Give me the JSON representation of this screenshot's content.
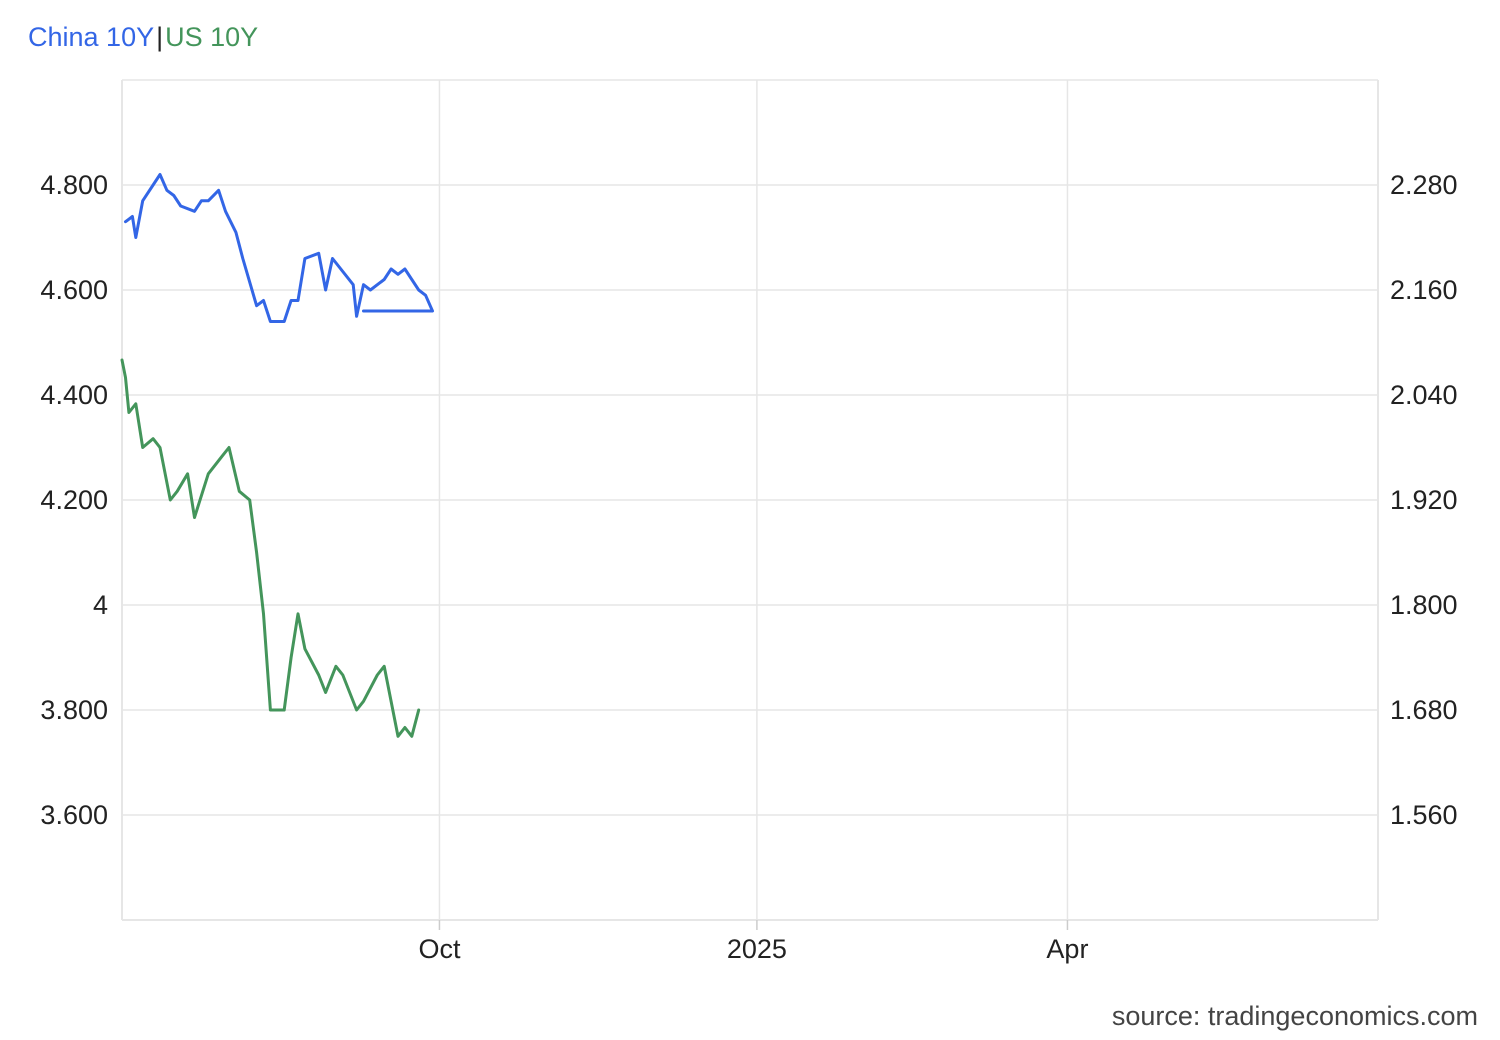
{
  "legend": {
    "series1": "China 10Y",
    "separator": "|",
    "series2": "US 10Y"
  },
  "source": "source: tradingeconomics.com",
  "colors": {
    "china": "#3366e6",
    "us": "#44955b",
    "grid": "#e6e6e6"
  },
  "chart_data": {
    "type": "line",
    "x_tick_labels": [
      "Oct",
      "2025",
      "Apr"
    ],
    "x_ticks": [
      "2024-10-01",
      "2025-01-01",
      "2025-04-01"
    ],
    "x_range": [
      "2024-07-01",
      "2025-06-30"
    ],
    "left_axis": {
      "ticks": [
        3.6,
        3.8,
        4.0,
        4.2,
        4.4,
        4.6,
        4.8
      ],
      "tick_labels": [
        "3.600",
        "3.800",
        "4",
        "4.200",
        "4.400",
        "4.600",
        "4.800"
      ],
      "range": [
        3.4,
        5.0
      ]
    },
    "right_axis": {
      "ticks": [
        1.56,
        1.68,
        1.8,
        1.92,
        2.04,
        2.16,
        2.28
      ],
      "tick_labels": [
        "1.560",
        "1.680",
        "1.800",
        "1.920",
        "2.040",
        "2.160",
        "2.280"
      ],
      "range": [
        1.44,
        2.4
      ]
    },
    "grid": true,
    "legend_position": "top-left",
    "series": [
      {
        "name": "China 10Y",
        "axis": "left",
        "points": [
          [
            "2024-07-02",
            4.73
          ],
          [
            "2024-07-04",
            4.74
          ],
          [
            "2024-07-05",
            4.7
          ],
          [
            "2024-07-07",
            4.77
          ],
          [
            "2024-07-10",
            4.8
          ],
          [
            "2024-07-12",
            4.82
          ],
          [
            "2024-07-14",
            4.79
          ],
          [
            "2024-07-16",
            4.78
          ],
          [
            "2024-07-18",
            4.76
          ],
          [
            "2024-07-22",
            4.75
          ],
          [
            "2024-07-24",
            4.77
          ],
          [
            "2024-07-26",
            4.77
          ],
          [
            "2024-07-29",
            4.79
          ],
          [
            "2024-07-31",
            4.75
          ],
          [
            "2024-08-03",
            4.71
          ],
          [
            "2024-08-05",
            4.66
          ],
          [
            "2024-08-09",
            4.57
          ],
          [
            "2024-08-11",
            4.58
          ],
          [
            "2024-08-13",
            4.54
          ],
          [
            "2024-08-17",
            4.54
          ],
          [
            "2024-08-19",
            4.58
          ],
          [
            "2024-08-21",
            4.58
          ],
          [
            "2024-08-23",
            4.66
          ],
          [
            "2024-08-27",
            4.67
          ],
          [
            "2024-08-29",
            4.6
          ],
          [
            "2024-08-31",
            4.66
          ],
          [
            "2024-09-06",
            4.61
          ],
          [
            "2024-09-07",
            4.55
          ],
          [
            "2024-09-09",
            4.61
          ],
          [
            "2024-09-11",
            4.6
          ],
          [
            "2024-09-15",
            4.62
          ],
          [
            "2024-09-17",
            4.64
          ],
          [
            "2024-09-19",
            4.63
          ],
          [
            "2024-09-21",
            4.64
          ],
          [
            "2024-09-23",
            4.62
          ],
          [
            "2024-09-25",
            4.6
          ],
          [
            "2024-09-27",
            4.59
          ],
          [
            "2024-09-29",
            4.56
          ],
          [
            "2024-09-09",
            4.56
          ]
        ]
      },
      {
        "name": "US 10Y",
        "axis": "right",
        "points": [
          [
            "2024-07-01",
            2.08
          ],
          [
            "2024-07-02",
            2.06
          ],
          [
            "2024-07-03",
            2.02
          ],
          [
            "2024-07-05",
            2.03
          ],
          [
            "2024-07-07",
            1.98
          ],
          [
            "2024-07-10",
            1.99
          ],
          [
            "2024-07-12",
            1.98
          ],
          [
            "2024-07-15",
            1.92
          ],
          [
            "2024-07-17",
            1.93
          ],
          [
            "2024-07-20",
            1.95
          ],
          [
            "2024-07-22",
            1.9
          ],
          [
            "2024-07-26",
            1.95
          ],
          [
            "2024-07-30",
            1.97
          ],
          [
            "2024-08-01",
            1.98
          ],
          [
            "2024-08-04",
            1.93
          ],
          [
            "2024-08-07",
            1.92
          ],
          [
            "2024-08-09",
            1.86
          ],
          [
            "2024-08-11",
            1.79
          ],
          [
            "2024-08-13",
            1.68
          ],
          [
            "2024-08-17",
            1.68
          ],
          [
            "2024-08-19",
            1.74
          ],
          [
            "2024-08-21",
            1.79
          ],
          [
            "2024-08-23",
            1.75
          ],
          [
            "2024-08-27",
            1.72
          ],
          [
            "2024-08-29",
            1.7
          ],
          [
            "2024-09-01",
            1.73
          ],
          [
            "2024-09-03",
            1.72
          ],
          [
            "2024-09-07",
            1.68
          ],
          [
            "2024-09-09",
            1.69
          ],
          [
            "2024-09-13",
            1.72
          ],
          [
            "2024-09-15",
            1.73
          ],
          [
            "2024-09-19",
            1.65
          ],
          [
            "2024-09-21",
            1.66
          ],
          [
            "2024-09-23",
            1.65
          ],
          [
            "2024-09-25",
            1.68
          ]
        ]
      }
    ]
  }
}
